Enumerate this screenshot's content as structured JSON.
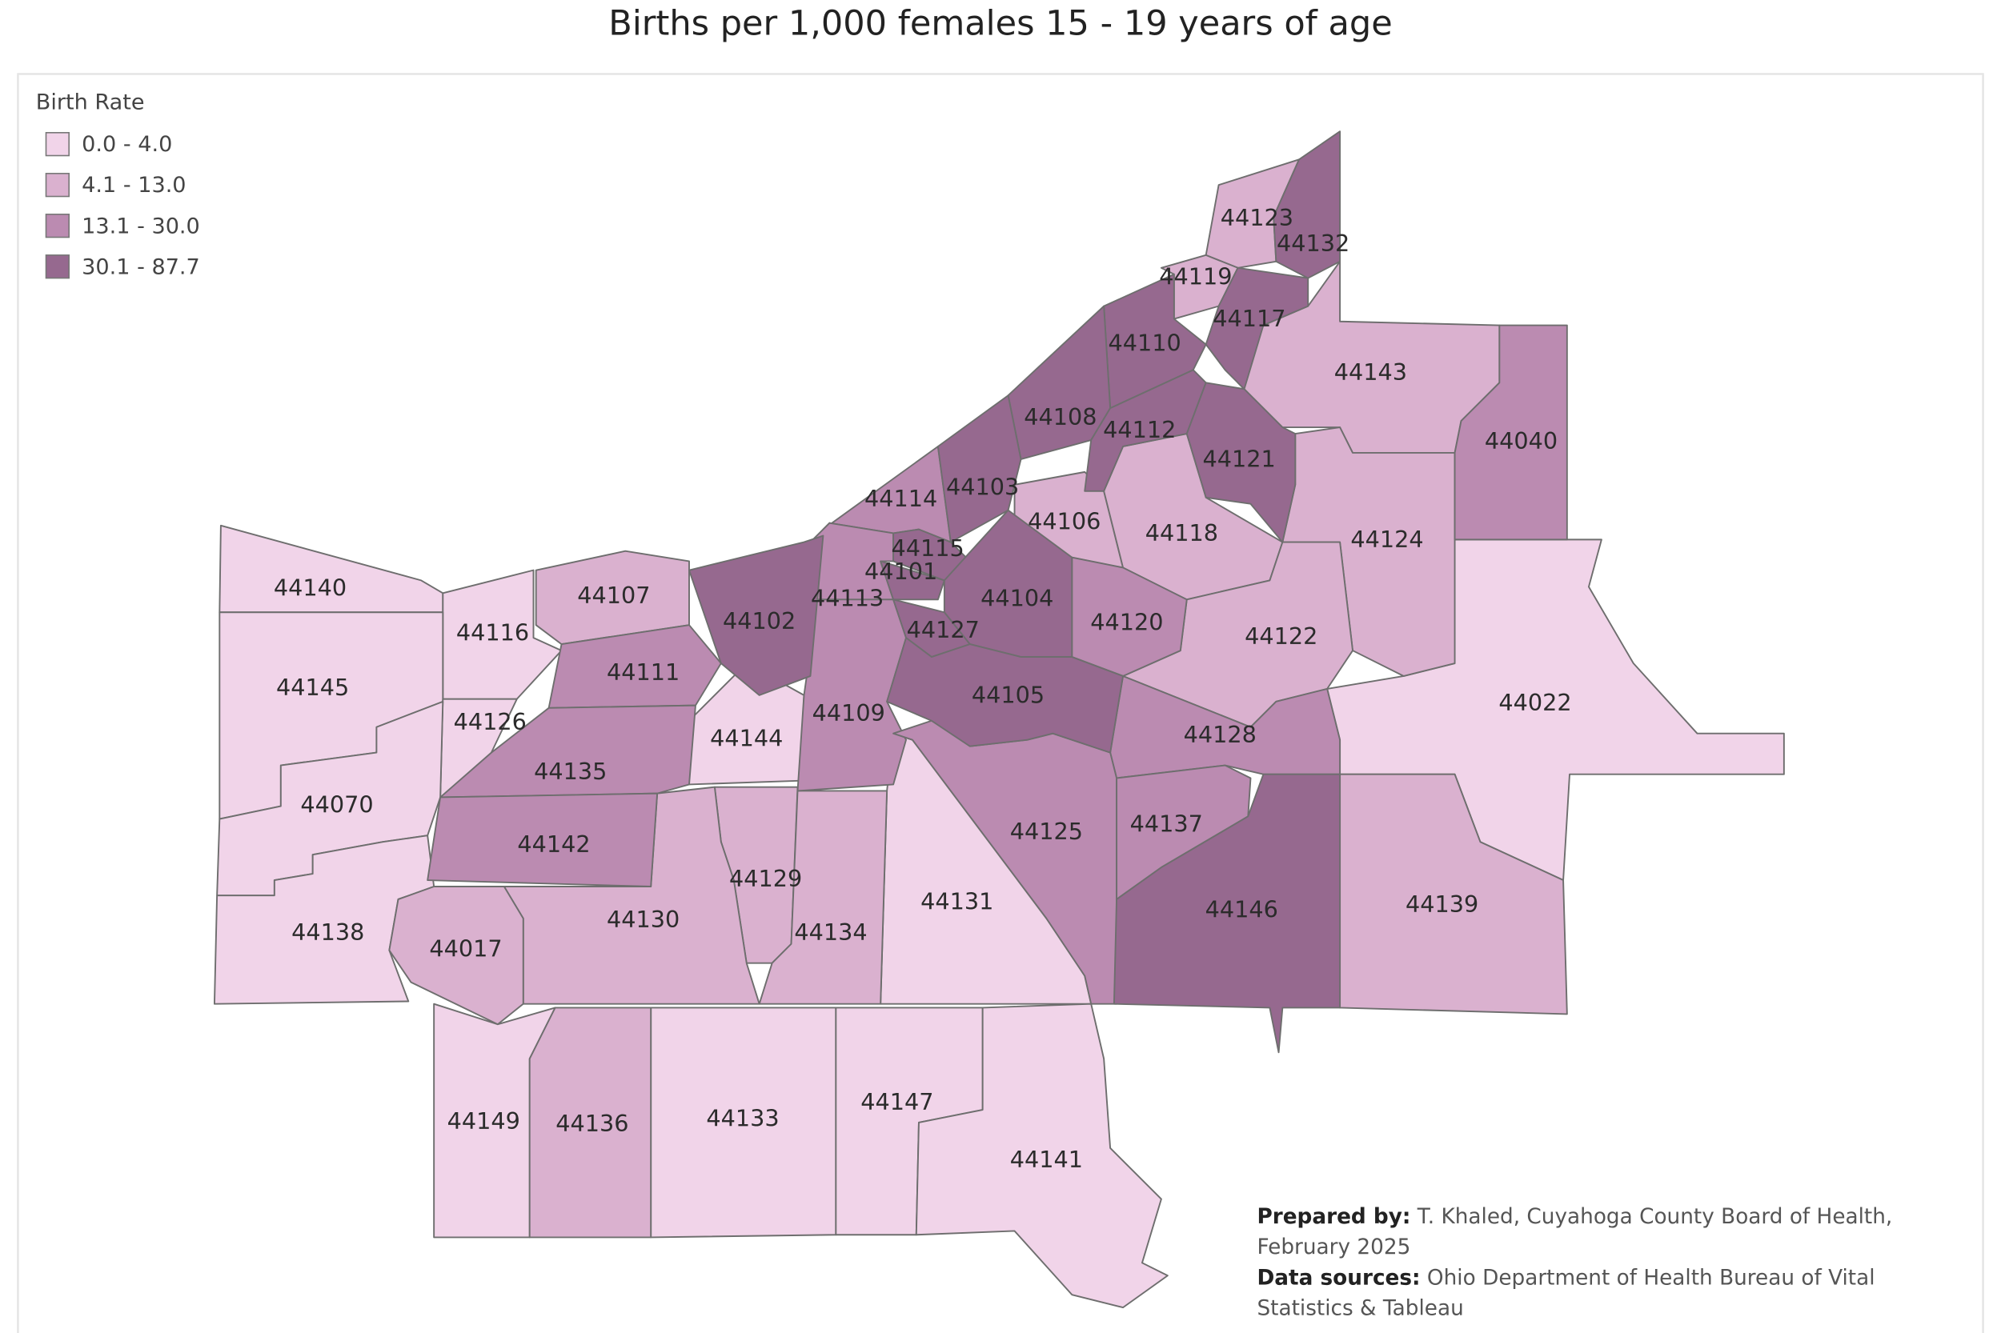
{
  "title": "Births per 1,000 females 15 - 19 years of age",
  "legend": {
    "title": "Birth Rate",
    "bins": [
      {
        "label": "0.0 - 4.0",
        "color": "#f1d4e9",
        "zips": [
          "44140",
          "44116",
          "44145",
          "44126",
          "44070",
          "44138",
          "44144",
          "44131",
          "44022",
          "44149",
          "44133",
          "44147",
          "44141"
        ]
      },
      {
        "label": "4.1 - 13.0",
        "color": "#dab1cf",
        "zips": [
          "44107",
          "44123",
          "44119",
          "44143",
          "44106",
          "44118",
          "44124",
          "44122",
          "44129",
          "44130",
          "44134",
          "44139",
          "44136",
          "44017"
        ]
      },
      {
        "label": "13.1 - 30.0",
        "color": "#bb8bb1",
        "zips": [
          "44114",
          "44113",
          "44109",
          "44111",
          "44135",
          "44142",
          "44120",
          "44128",
          "44125",
          "44137",
          "44040"
        ]
      },
      {
        "label": "30.1 - 87.7",
        "color": "#96698f",
        "zips": [
          "44132",
          "44117",
          "44110",
          "44108",
          "44112",
          "44121",
          "44103",
          "44115",
          "44101",
          "44102",
          "44104",
          "44127",
          "44105",
          "44146"
        ]
      }
    ]
  },
  "notes": {
    "prepared_by_label": "Prepared by:",
    "prepared_by": "T. Khaled, Cuyahoga County Board of Health, February 2025",
    "data_sources_label": "Data sources:",
    "data_sources": "Ohio Department of Health Bureau of Vital Statistics & Tableau"
  }
}
